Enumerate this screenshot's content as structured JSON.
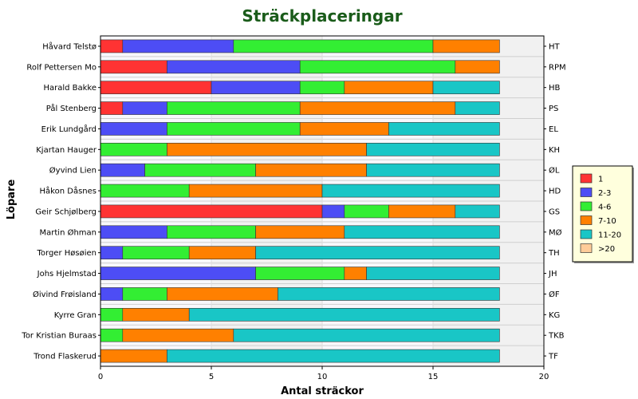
{
  "chart_data": {
    "type": "bar",
    "orientation": "horizontal",
    "stacked": true,
    "title": "Sträckplaceringar",
    "xlabel": "Antal sträckor",
    "ylabel": "Löpare",
    "xlim": [
      0,
      20
    ],
    "xticks": [
      "0",
      "5",
      "10",
      "15",
      "20"
    ],
    "grid": true,
    "legend_position": "right",
    "categories": [
      "Håvard Telstø",
      "Rolf Pettersen Mo",
      "Harald Bakke",
      "Pål Stenberg",
      "Erik Lundgård",
      "Kjartan Hauger",
      "Øyvind Lien",
      "Håkon Dåsnes",
      "Geir Schjølberg",
      "Martin Øhman",
      "Torger Høsøien",
      "Johs Hjelmstad",
      "Øivind Frøisland",
      "Kyrre Gran",
      "Tor Kristian Buraas",
      "Trond Flaskerud"
    ],
    "right_labels": [
      "HT",
      "RPM",
      "HB",
      "PS",
      "EL",
      "KH",
      "ØL",
      "HD",
      "GS",
      "MØ",
      "TH",
      "JH",
      "ØF",
      "KG",
      "TKB",
      "TF"
    ],
    "series": [
      {
        "name": "1",
        "color": "#ff3333",
        "values": [
          1,
          3,
          5,
          1,
          0,
          0,
          0,
          0,
          10,
          0,
          0,
          0,
          0,
          0,
          0,
          0
        ]
      },
      {
        "name": "2-3",
        "color": "#4d4df5",
        "values": [
          5,
          6,
          4,
          2,
          3,
          0,
          2,
          0,
          1,
          3,
          1,
          7,
          1,
          0,
          0,
          0
        ]
      },
      {
        "name": "4-6",
        "color": "#33ee33",
        "values": [
          9,
          7,
          2,
          6,
          6,
          3,
          5,
          4,
          2,
          4,
          3,
          4,
          2,
          1,
          1,
          0
        ]
      },
      {
        "name": "7-10",
        "color": "#ff8000",
        "values": [
          3,
          2,
          4,
          7,
          4,
          9,
          5,
          6,
          3,
          4,
          3,
          1,
          5,
          3,
          5,
          3
        ]
      },
      {
        "name": "11-20",
        "color": "#19c6c6",
        "values": [
          0,
          0,
          3,
          2,
          5,
          6,
          6,
          8,
          2,
          7,
          11,
          6,
          10,
          14,
          12,
          15
        ]
      },
      {
        "name": ">20",
        "color": "#ffcc99",
        "values": [
          0,
          0,
          0,
          0,
          0,
          0,
          0,
          0,
          0,
          0,
          0,
          0,
          0,
          0,
          0,
          0
        ]
      }
    ]
  }
}
